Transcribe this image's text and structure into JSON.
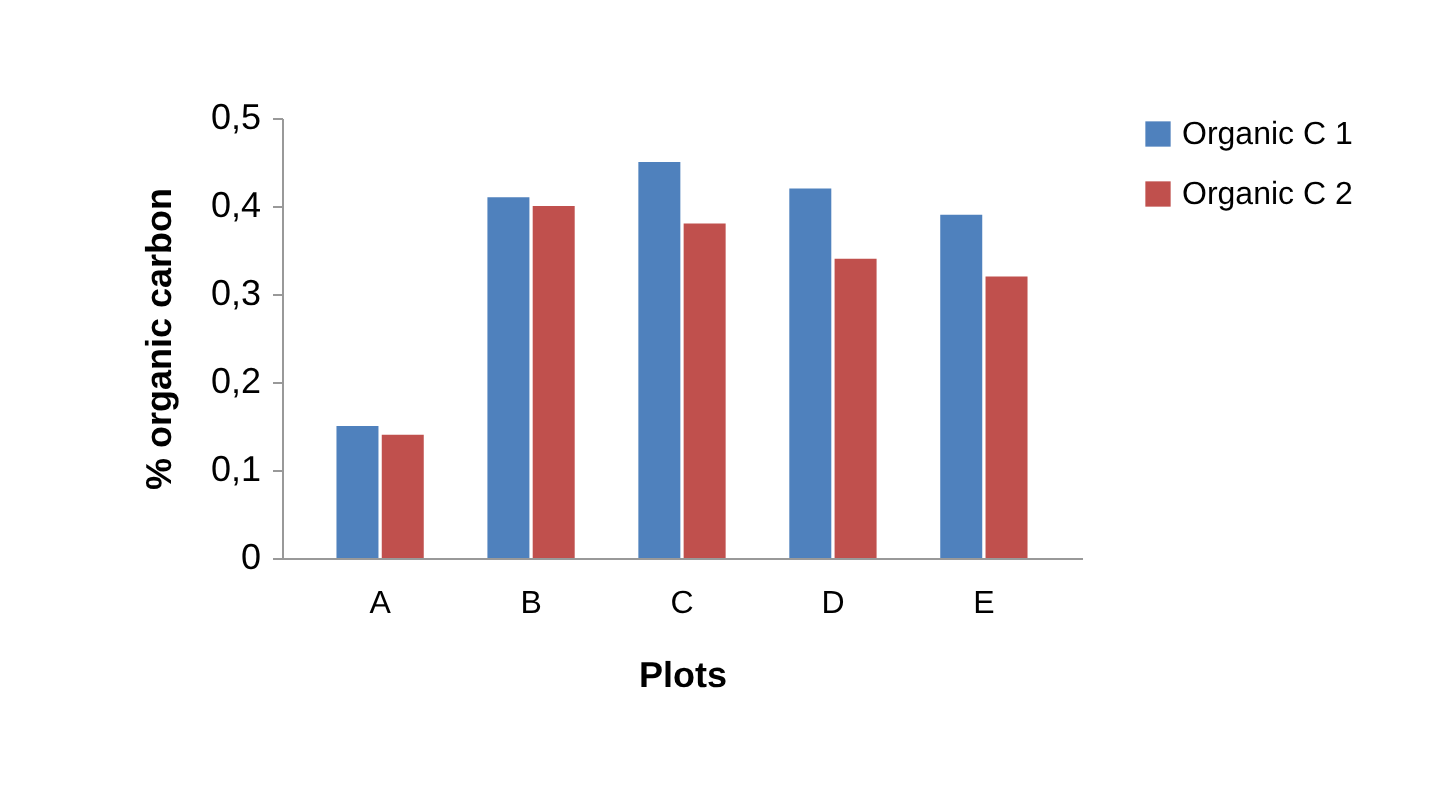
{
  "chart_data": {
    "type": "bar",
    "xlabel": "Plots",
    "ylabel": "% organic carbon",
    "categories": [
      "A",
      "B",
      "C",
      "D",
      "E"
    ],
    "series": [
      {
        "name": "Organic C  1",
        "color": "#4f81bd",
        "values": [
          0.15,
          0.41,
          0.45,
          0.42,
          0.39
        ]
      },
      {
        "name": "Organic C 2",
        "color": "#c0504d",
        "values": [
          0.14,
          0.4,
          0.38,
          0.34,
          0.32
        ]
      }
    ],
    "ylim": [
      0,
      0.5
    ],
    "yticks": [
      {
        "value": 0,
        "label": "0"
      },
      {
        "value": 0.1,
        "label": "0,1"
      },
      {
        "value": 0.2,
        "label": "0,2"
      },
      {
        "value": 0.3,
        "label": "0,3"
      },
      {
        "value": 0.4,
        "label": "0,4"
      },
      {
        "value": 0.5,
        "label": "0,5"
      }
    ],
    "grid": false,
    "legend": "right"
  }
}
